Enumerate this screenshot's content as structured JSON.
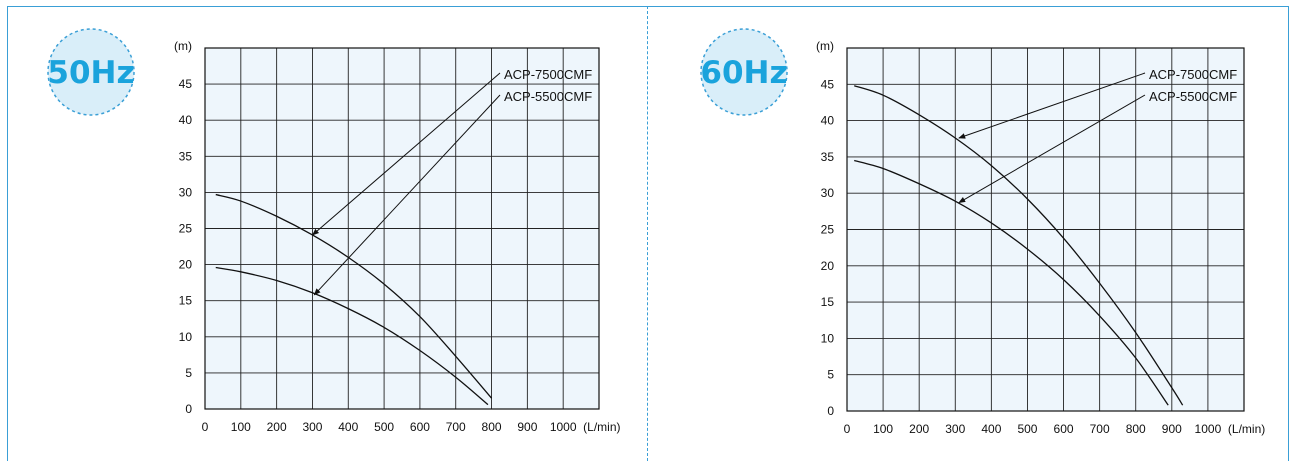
{
  "chart_data": [
    {
      "type": "line",
      "badge": "50Hz",
      "ylabel": "(m)",
      "xunit": "(L/min)",
      "xlim": [
        0,
        1100
      ],
      "ylim": [
        0,
        50
      ],
      "x_ticks": [
        0,
        100,
        200,
        300,
        400,
        500,
        600,
        700,
        800,
        900,
        1000
      ],
      "y_ticks": [
        0,
        5,
        10,
        15,
        20,
        25,
        30,
        35,
        40,
        45
      ],
      "grid": true,
      "series": [
        {
          "name": "ACP-7500CMF",
          "points": [
            [
              30,
              29.7
            ],
            [
              100,
              28.8
            ],
            [
              200,
              26.7
            ],
            [
              300,
              24.1
            ],
            [
              400,
              21.0
            ],
            [
              500,
              17.3
            ],
            [
              600,
              12.8
            ],
            [
              700,
              7.3
            ],
            [
              800,
              1.5
            ]
          ],
          "label_anchor": [
            300,
            24.1
          ]
        },
        {
          "name": "ACP-5500CMF",
          "points": [
            [
              30,
              19.6
            ],
            [
              100,
              19.0
            ],
            [
              200,
              17.8
            ],
            [
              300,
              16.1
            ],
            [
              400,
              13.9
            ],
            [
              500,
              11.3
            ],
            [
              600,
              8.1
            ],
            [
              700,
              4.4
            ],
            [
              790,
              0.6
            ]
          ],
          "label_anchor": [
            305,
            15.8
          ]
        }
      ]
    },
    {
      "type": "line",
      "badge": "60Hz",
      "ylabel": "(m)",
      "xunit": "(L/min)",
      "xlim": [
        0,
        1100
      ],
      "ylim": [
        0,
        50
      ],
      "x_ticks": [
        0,
        100,
        200,
        300,
        400,
        500,
        600,
        700,
        800,
        900,
        1000
      ],
      "y_ticks": [
        0,
        5,
        10,
        15,
        20,
        25,
        30,
        35,
        40,
        45
      ],
      "grid": true,
      "series": [
        {
          "name": "ACP-7500CMF",
          "points": [
            [
              20,
              44.8
            ],
            [
              100,
              43.5
            ],
            [
              200,
              40.8
            ],
            [
              300,
              37.6
            ],
            [
              400,
              33.8
            ],
            [
              500,
              29.2
            ],
            [
              600,
              23.8
            ],
            [
              700,
              17.6
            ],
            [
              800,
              10.8
            ],
            [
              900,
              3.2
            ],
            [
              930,
              0.8
            ]
          ],
          "label_anchor": [
            310,
            37.6
          ]
        },
        {
          "name": "ACP-5500CMF",
          "points": [
            [
              20,
              34.5
            ],
            [
              100,
              33.4
            ],
            [
              200,
              31.3
            ],
            [
              300,
              28.9
            ],
            [
              400,
              25.9
            ],
            [
              500,
              22.3
            ],
            [
              600,
              18.1
            ],
            [
              700,
              13.1
            ],
            [
              800,
              7.3
            ],
            [
              890,
              0.8
            ]
          ],
          "label_anchor": [
            310,
            28.7
          ]
        }
      ]
    }
  ]
}
